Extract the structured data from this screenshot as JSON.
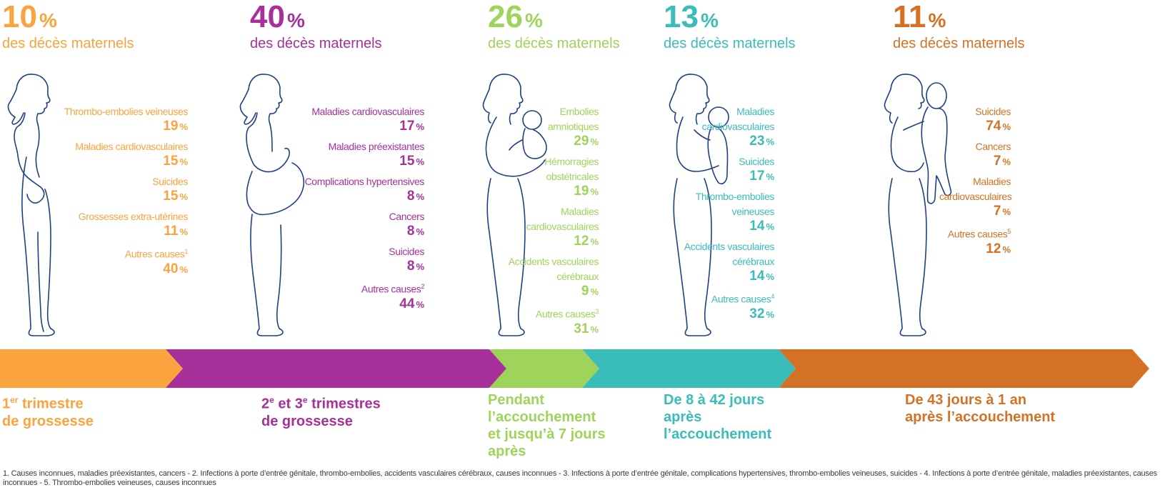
{
  "colors": {
    "phase1": "#FBA33E",
    "phase2": "#A7309A",
    "phase3": "#9FD45A",
    "phase4": "#3ABDBA",
    "phase5": "#D57124",
    "figure_stroke": "#1E3F86"
  },
  "phases": [
    {
      "percent": "10",
      "unit": "%",
      "subtitle": "des décès maternels",
      "figure_icon": "woman-standing-icon",
      "causes": [
        {
          "label": "Thrombo-embolies veineuses",
          "value": "19",
          "unit": "%"
        },
        {
          "label": "Maladies cardiovasculaires",
          "value": "15",
          "unit": "%"
        },
        {
          "label": "Suicides",
          "value": "15",
          "unit": "%"
        },
        {
          "label": "Grossesses extra-utérines",
          "value": "11",
          "unit": "%"
        },
        {
          "label": "Autres causes",
          "note": "1",
          "value": "40",
          "unit": "%"
        }
      ],
      "period_prefix": "1",
      "period_sup": "er",
      "period_rest": " trimestre",
      "period_line2": "de grossesse"
    },
    {
      "percent": "40",
      "unit": "%",
      "subtitle": "des décès maternels",
      "figure_icon": "pregnant-woman-icon",
      "causes": [
        {
          "label": "Maladies cardiovasculaires",
          "value": "17",
          "unit": "%"
        },
        {
          "label": "Maladies préexistantes",
          "value": "15",
          "unit": "%"
        },
        {
          "label": "Complications hypertensives",
          "value": "8",
          "unit": "%"
        },
        {
          "label": "Cancers",
          "value": "8",
          "unit": "%"
        },
        {
          "label": "Suicides",
          "value": "8",
          "unit": "%"
        },
        {
          "label": "Autres causes",
          "note": "2",
          "value": "44",
          "unit": "%"
        }
      ],
      "period_prefix": "2",
      "period_sup": "e",
      "period_mid": " et 3",
      "period_sup2": "e",
      "period_rest": " trimestres",
      "period_line2": "de grossesse"
    },
    {
      "percent": "26",
      "unit": "%",
      "subtitle": "des décès maternels",
      "figure_icon": "woman-holding-newborn-icon",
      "causes": [
        {
          "label": "Embolies amniotiques",
          "value": "29",
          "unit": "%"
        },
        {
          "label": "Hémorragies obstétricales",
          "value": "19",
          "unit": "%"
        },
        {
          "label": "Maladies cardiovasculaires",
          "value": "12",
          "unit": "%"
        },
        {
          "label": "Accidents vasculaires cérébraux",
          "value": "9",
          "unit": "%"
        },
        {
          "label": "Autres causes",
          "note": "3",
          "value": "31",
          "unit": "%"
        }
      ],
      "period_lines": [
        "Pendant",
        "l’accouchement",
        "et jusqu’à 7 jours",
        "après"
      ]
    },
    {
      "percent": "13",
      "unit": "%",
      "subtitle": "des décès maternels",
      "figure_icon": "woman-holding-baby-icon",
      "causes": [
        {
          "label": "Maladies cardiovasculaires",
          "value": "23",
          "unit": "%"
        },
        {
          "label": "Suicides",
          "value": "17",
          "unit": "%"
        },
        {
          "label": "Thrombo-embolies veineuses",
          "value": "14",
          "unit": "%"
        },
        {
          "label": "Accidents vasculaires cérébraux",
          "value": "14",
          "unit": "%"
        },
        {
          "label": "Autres causes",
          "note": "4",
          "value": "32",
          "unit": "%"
        }
      ],
      "period_lines": [
        "De 8 à 42 jours",
        "après",
        "l’accouchement"
      ]
    },
    {
      "percent": "11",
      "unit": "%",
      "subtitle": "des décès maternels",
      "figure_icon": "woman-holding-toddler-icon",
      "causes": [
        {
          "label": "Suicides",
          "value": "74",
          "unit": "%"
        },
        {
          "label": "Cancers",
          "value": "7",
          "unit": "%"
        },
        {
          "label": "Maladies cardiovasculaires",
          "value": "7",
          "unit": "%"
        },
        {
          "label": "Autres causes",
          "note": "5",
          "value": "12",
          "unit": "%"
        }
      ],
      "period_lines": [
        "De 43 jours à 1 an",
        "après l’accouchement"
      ]
    }
  ],
  "footnote": "1. Causes inconnues, maladies préexistantes, cancers - 2. Infections à porte d’entrée génitale, thrombo-embolies, accidents vasculaires cérébraux, causes inconnues - 3. Infections à porte d’entrée génitale, complications hypertensives, thrombo-embolies veineuses, suicides - 4. Infections à porte d’entrée génitale, maladies préexistantes, causes inconnues - 5. Thrombo-embolies veineuses, causes inconnues"
}
